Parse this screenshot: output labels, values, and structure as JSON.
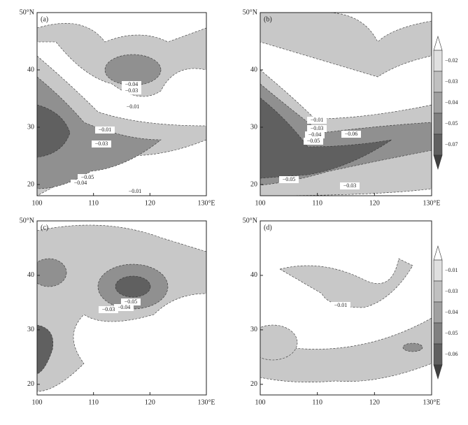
{
  "panels": [
    {
      "label": "(a)",
      "y_ticks": [
        "50°N",
        "40",
        "30",
        "20"
      ],
      "x_ticks": [
        "100",
        "110",
        "120",
        "130°E"
      ],
      "contour_labels": [
        "−0.04",
        "−0.03",
        "−0.01",
        "−0.01",
        "−0.03",
        "−0.05",
        "−0.04",
        "−0.01"
      ]
    },
    {
      "label": "(b)",
      "y_ticks": [
        "50°N",
        "40",
        "30",
        "20"
      ],
      "x_ticks": [
        "100",
        "110",
        "120",
        "130°E"
      ],
      "contour_labels": [
        "−0.01",
        "−0.03",
        "−0.04",
        "−0.05",
        "−0.06",
        "−0.05",
        "−0.03"
      ]
    },
    {
      "label": "(c)",
      "y_ticks": [
        "50°N",
        "40",
        "30",
        "20"
      ],
      "x_ticks": [
        "100",
        "110",
        "120",
        "130°E"
      ],
      "contour_labels": [
        "−0.05",
        "−0.04",
        "−0.03"
      ]
    },
    {
      "label": "(d)",
      "y_ticks": [
        "50°N",
        "40",
        "30",
        "20"
      ],
      "x_ticks": [
        "100",
        "110",
        "120",
        "130°E"
      ],
      "contour_labels": [
        "−0.01"
      ]
    }
  ],
  "colorbars": [
    {
      "labels": [
        "−0.02",
        "−0.03",
        "−0.04",
        "−0.05",
        "−0.07"
      ]
    },
    {
      "labels": [
        "−0.01",
        "−0.03",
        "−0.04",
        "−0.05",
        "−0.06"
      ]
    }
  ]
}
